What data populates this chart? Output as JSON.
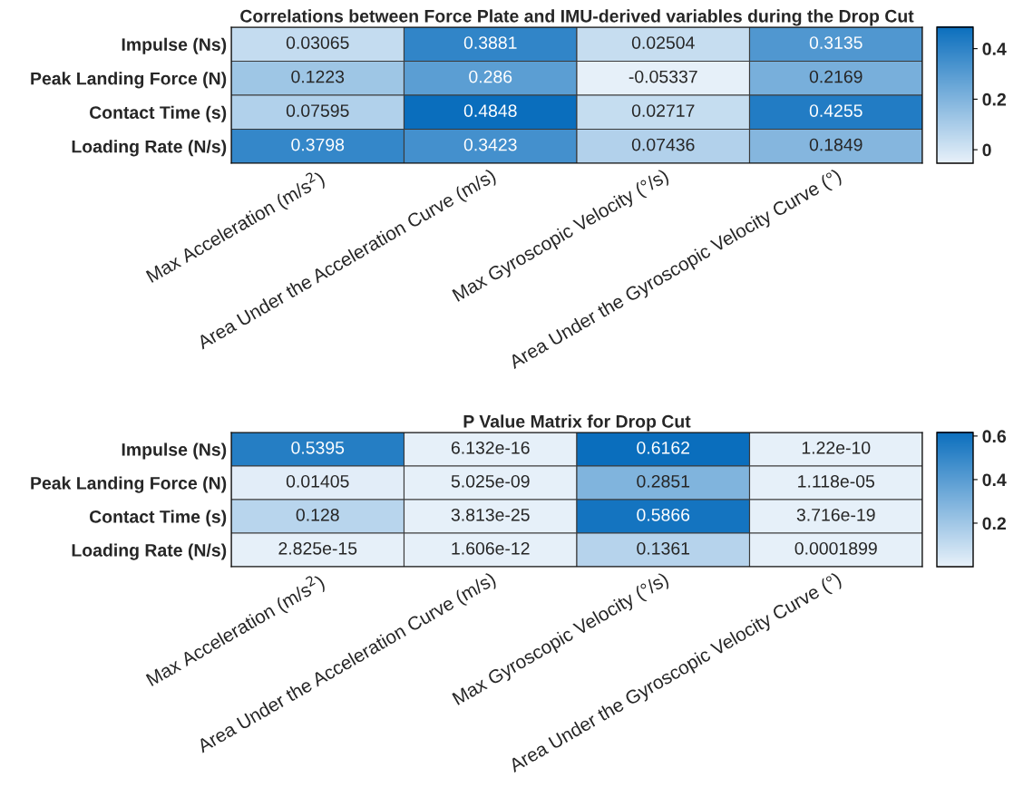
{
  "chart_data": [
    {
      "type": "heatmap",
      "title": "Correlations between Force Plate and IMU-derived variables during the Drop Cut",
      "categories": [
        "Max Acceleration (m/s$^{2}$)",
        "Area Under the Acceleration Curve (m/s)",
        "Max Gyroscopic Velocity (°/s)",
        "Area Under the Gyroscopic Velocity Curve (°)"
      ],
      "y_categories": [
        "Impulse (Ns)",
        "Peak Landing Force (N)",
        "Contact Time (s)",
        "Loading Rate (N/s)"
      ],
      "cells": [
        [
          0.03065,
          0.3881,
          0.02504,
          0.3135
        ],
        [
          0.1223,
          0.286,
          -0.05337,
          0.2169
        ],
        [
          0.07595,
          0.4848,
          0.02717,
          0.4255
        ],
        [
          0.3798,
          0.3423,
          0.07436,
          0.1849
        ]
      ],
      "clim": [
        -0.05337,
        0.4848
      ],
      "cticks": [
        0,
        0.2,
        0.4
      ],
      "data_labels": true
    },
    {
      "type": "heatmap",
      "title": "P Value Matrix for Drop Cut",
      "categories": [
        "Max Acceleration (m/s$^{2}$)",
        "Area Under the Acceleration Curve (m/s)",
        "Max Gyroscopic Velocity (°/s)",
        "Area Under the Gyroscopic Velocity Curve (°)"
      ],
      "y_categories": [
        "Impulse (Ns)",
        "Peak Landing Force (N)",
        "Contact Time (s)",
        "Loading Rate (N/s)"
      ],
      "cells": [
        [
          0.5395,
          6.132e-16,
          0.6162,
          1.22e-10
        ],
        [
          0.01405,
          5.025e-09,
          0.2851,
          1.118e-05
        ],
        [
          0.128,
          3.813e-25,
          0.5866,
          3.716e-19
        ],
        [
          2.825e-15,
          1.606e-12,
          0.1361,
          0.0001899
        ]
      ],
      "clim": [
        0,
        0.6162
      ],
      "cticks": [
        0.2,
        0.4,
        0.6
      ],
      "data_labels": true
    }
  ]
}
